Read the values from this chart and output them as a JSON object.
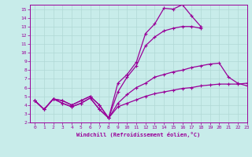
{
  "xlabel": "Windchill (Refroidissement éolien,°C)",
  "xlim": [
    -0.5,
    23
  ],
  "ylim": [
    2,
    15.5
  ],
  "yticks": [
    2,
    3,
    4,
    5,
    6,
    7,
    8,
    9,
    10,
    11,
    12,
    13,
    14,
    15
  ],
  "xticks": [
    0,
    1,
    2,
    3,
    4,
    5,
    6,
    7,
    8,
    9,
    10,
    11,
    12,
    13,
    14,
    15,
    16,
    17,
    18,
    19,
    20,
    21,
    22,
    23
  ],
  "bg_color": "#c8ecea",
  "line_color": "#990099",
  "grid_color": "#b0d8d5",
  "lines": [
    {
      "x": [
        0,
        1,
        2,
        3,
        4,
        5,
        6,
        7,
        8,
        9,
        10,
        11,
        12,
        13,
        14,
        15,
        16,
        17,
        18,
        19,
        20,
        21,
        22,
        23
      ],
      "y": [
        4.5,
        3.5,
        4.7,
        4.5,
        4.0,
        4.5,
        5.0,
        4.0,
        2.5,
        6.5,
        7.5,
        8.9,
        12.2,
        13.3,
        15.1,
        15.0,
        15.5,
        14.2,
        13.0,
        null,
        null,
        null,
        null,
        null
      ]
    },
    {
      "x": [
        0,
        1,
        2,
        3,
        4,
        5,
        6,
        7,
        8,
        9,
        10,
        11,
        12,
        13,
        14,
        15,
        16,
        17,
        18,
        19,
        20,
        21,
        22,
        23
      ],
      "y": [
        4.5,
        3.5,
        4.7,
        4.5,
        4.0,
        4.5,
        5.0,
        4.0,
        2.5,
        5.5,
        7.2,
        8.5,
        10.8,
        11.8,
        12.5,
        12.8,
        13.0,
        13.0,
        12.8,
        null,
        null,
        null,
        null,
        null
      ]
    },
    {
      "x": [
        0,
        1,
        2,
        3,
        4,
        5,
        6,
        7,
        8,
        9,
        10,
        11,
        12,
        13,
        14,
        15,
        16,
        17,
        18,
        19,
        20,
        21,
        22,
        23
      ],
      "y": [
        4.5,
        3.5,
        4.7,
        4.2,
        3.8,
        4.2,
        4.8,
        3.5,
        2.5,
        4.2,
        5.2,
        6.0,
        6.5,
        7.2,
        7.5,
        7.8,
        8.0,
        8.3,
        8.5,
        8.7,
        8.8,
        7.2,
        6.5,
        6.2
      ]
    },
    {
      "x": [
        0,
        1,
        2,
        3,
        4,
        5,
        6,
        7,
        8,
        9,
        10,
        11,
        12,
        13,
        14,
        15,
        16,
        17,
        18,
        19,
        20,
        21,
        22,
        23
      ],
      "y": [
        4.5,
        3.5,
        4.7,
        4.2,
        3.8,
        4.2,
        4.8,
        3.5,
        2.5,
        3.8,
        4.2,
        4.6,
        5.0,
        5.3,
        5.5,
        5.7,
        5.9,
        6.0,
        6.2,
        6.3,
        6.4,
        6.4,
        6.4,
        6.5
      ]
    }
  ]
}
